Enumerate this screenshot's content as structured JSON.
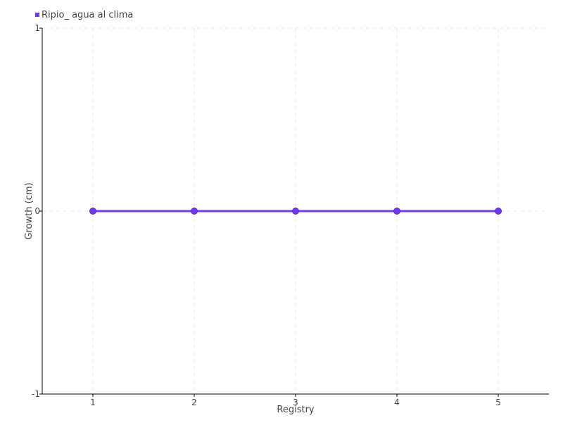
{
  "chart_data": {
    "type": "line",
    "title": "",
    "xlabel": "Registry",
    "ylabel": "Growth (cm)",
    "x": [
      1,
      2,
      3,
      4,
      5
    ],
    "xlim": [
      0.5,
      5.5
    ],
    "ylim": [
      -1,
      1
    ],
    "xticks": [
      "1",
      "2",
      "3",
      "4",
      "5"
    ],
    "yticks": [
      "-1",
      "0",
      "1"
    ],
    "grid": true,
    "legend_placement": "top-left",
    "series": [
      {
        "name": "Ripio_ agua al clima",
        "values": [
          0,
          0,
          0,
          0,
          0
        ],
        "color": "#6f3ce8"
      }
    ]
  }
}
